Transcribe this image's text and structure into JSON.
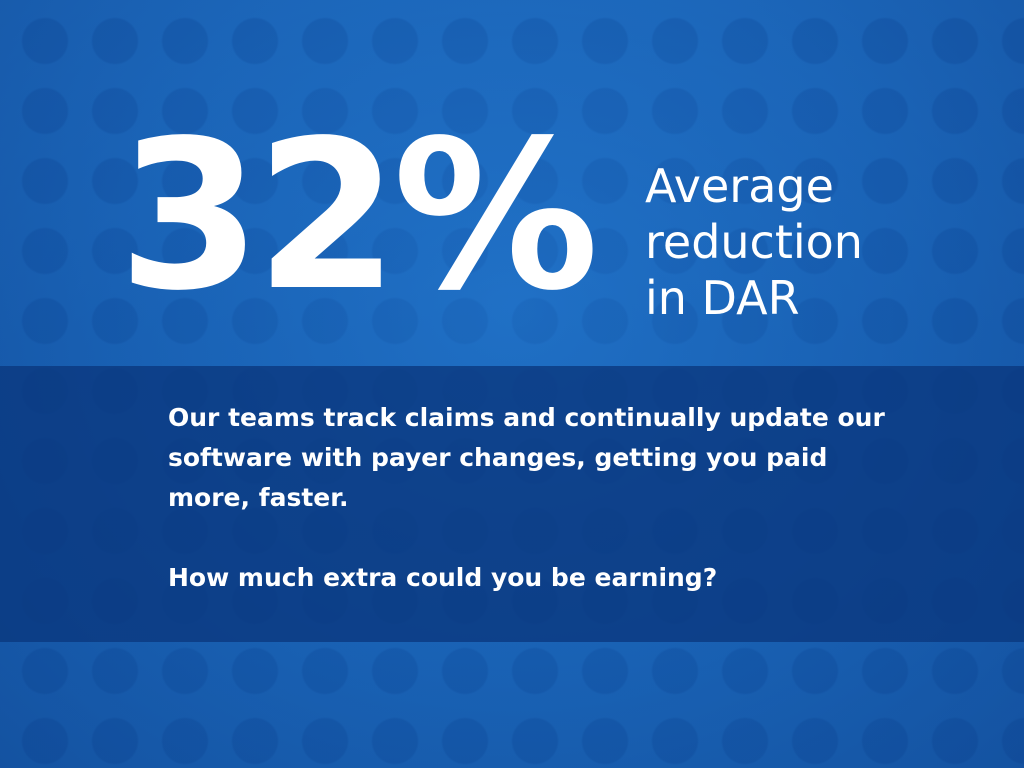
{
  "stat": {
    "value": "32%",
    "label_lines": [
      "Average",
      "reduction",
      "in DAR"
    ]
  },
  "message": {
    "paragraph": "Our teams track claims and continually update our software with payer changes, getting you paid more, faster.",
    "question": "How much extra could you be earning?"
  },
  "colors": {
    "background": "#1c69bc",
    "band": "#0a377d",
    "text": "#ffffff"
  }
}
